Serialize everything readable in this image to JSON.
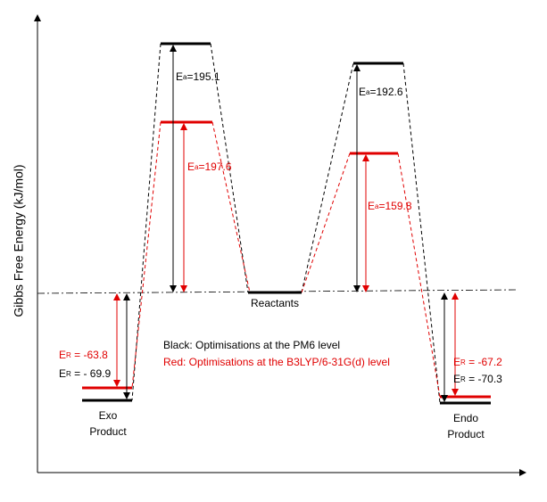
{
  "y_axis_label": "Gibbs Free Energy (kJ/mol)",
  "levels": {
    "reactants": "Reactants",
    "exo": [
      "Exo",
      "Product"
    ],
    "endo": [
      "Endo",
      "Product"
    ]
  },
  "annotations": [
    {
      "main": "E",
      "sub": "a",
      "rest": "=195.1"
    },
    {
      "main": "E",
      "sub": "a",
      "rest": "=197.6"
    },
    {
      "main": "E",
      "sub": "a",
      "rest": "=192.6"
    },
    {
      "main": "E",
      "sub": "a",
      "rest": "=159.8"
    },
    {
      "main": "E",
      "sub": "R",
      "rest": " = -63.8"
    },
    {
      "main": "E",
      "sub": "R",
      "rest": " = - 69.9"
    },
    {
      "main": "E",
      "sub": "R",
      "rest": " = -67.2"
    },
    {
      "main": "E",
      "sub": "R",
      "rest": " = -70.3"
    }
  ],
  "legend": [
    "Black: Optimisations at the PM6 level",
    "Red: Optimisations at the B3LYP/6-31G(d) level"
  ]
}
